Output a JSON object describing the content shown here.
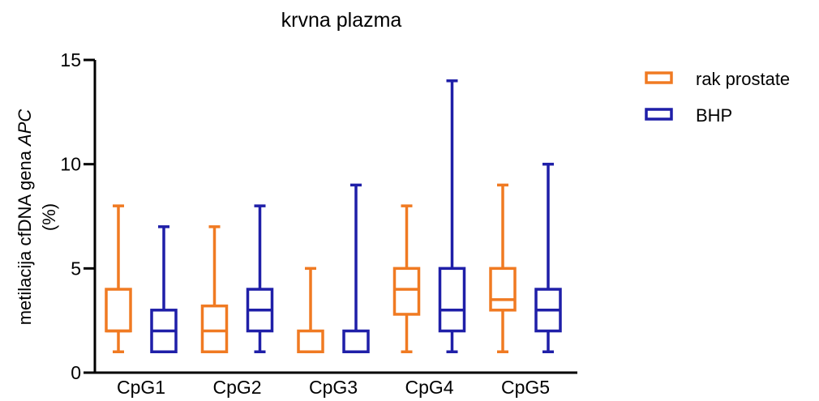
{
  "chart_data": {
    "type": "box",
    "title": "krvna plazma",
    "ylabel_line1_prefix": "metilacija cfDNA gena ",
    "ylabel_line1_italic": "APC",
    "ylabel_line2": "(%)",
    "xlabel": "",
    "ylim": [
      0,
      15
    ],
    "yticks": [
      0,
      5,
      10,
      15
    ],
    "categories": [
      "CpG1",
      "CpG2",
      "CpG3",
      "CpG4",
      "CpG5"
    ],
    "legend_position": "top-right",
    "series": [
      {
        "name": "rak prostate",
        "color": "#F07A22",
        "boxes": [
          {
            "min": 1,
            "q1": 2,
            "median": 2,
            "q3": 4,
            "max": 8
          },
          {
            "min": 1,
            "q1": 1,
            "median": 2,
            "q3": 3.2,
            "max": 7
          },
          {
            "min": 1,
            "q1": 1,
            "median": 1,
            "q3": 2,
            "max": 5
          },
          {
            "min": 1,
            "q1": 2.8,
            "median": 4,
            "q3": 5,
            "max": 8
          },
          {
            "min": 1,
            "q1": 3,
            "median": 3.5,
            "q3": 5,
            "max": 9
          }
        ]
      },
      {
        "name": "BHP",
        "color": "#1F1FA8",
        "boxes": [
          {
            "min": 1,
            "q1": 1,
            "median": 2,
            "q3": 3,
            "max": 7
          },
          {
            "min": 1,
            "q1": 2,
            "median": 3,
            "q3": 4,
            "max": 8
          },
          {
            "min": 1,
            "q1": 1,
            "median": 1,
            "q3": 2,
            "max": 9
          },
          {
            "min": 1,
            "q1": 2,
            "median": 3,
            "q3": 5,
            "max": 14
          },
          {
            "min": 1,
            "q1": 2,
            "median": 3,
            "q3": 4,
            "max": 10
          }
        ]
      }
    ]
  }
}
